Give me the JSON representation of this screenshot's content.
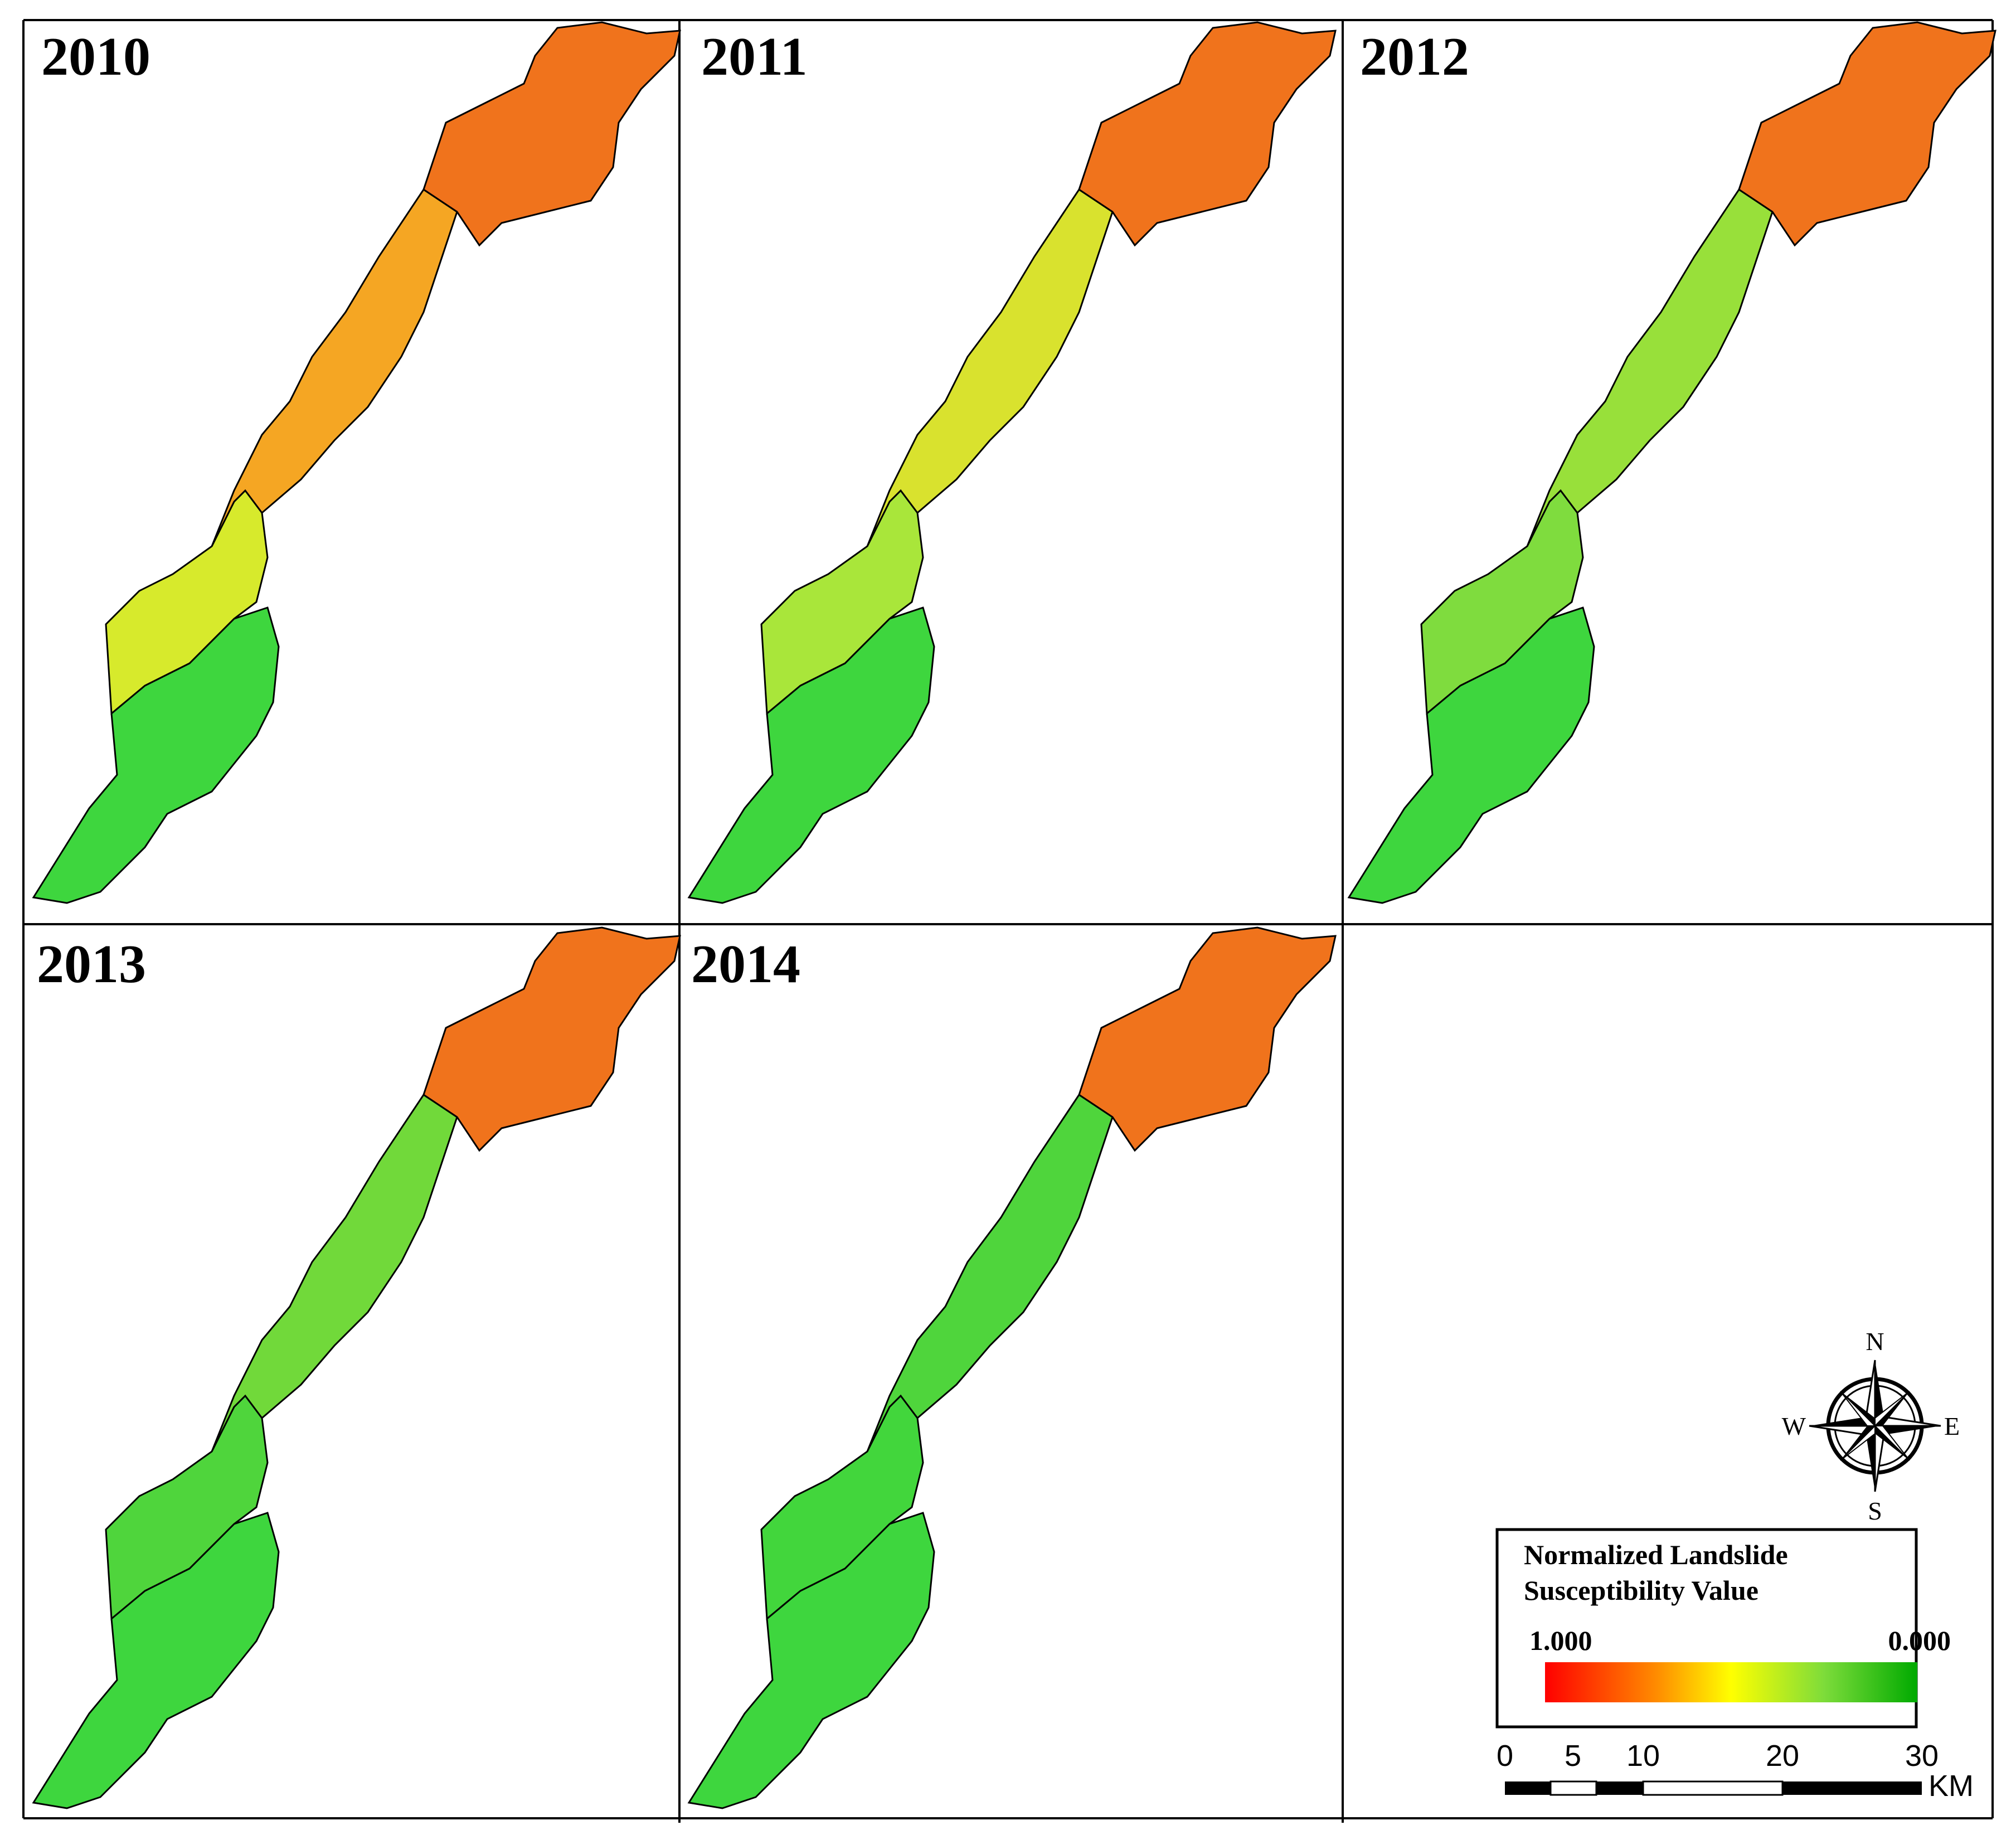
{
  "panels": [
    {
      "label": "2010",
      "fills": [
        "#3ed63e",
        "#d7ea2c",
        "#f5a623",
        "#f0731c"
      ]
    },
    {
      "label": "2011",
      "fills": [
        "#3ed63e",
        "#a9e63a",
        "#d9e22e",
        "#f0731c"
      ]
    },
    {
      "label": "2012",
      "fills": [
        "#3ed63e",
        "#7fdc3e",
        "#98e03a",
        "#f0731c"
      ]
    },
    {
      "label": "2013",
      "fills": [
        "#3ed63e",
        "#4fd53c",
        "#71d93a",
        "#f0731c"
      ]
    },
    {
      "label": "2014",
      "fills": [
        "#3ed63e",
        "#42d63c",
        "#4fd53c",
        "#f0731c"
      ]
    }
  ],
  "legend": {
    "title_line1": "Normalized Landslide",
    "title_line2": "Susceptibility Value",
    "max_label": "1.000",
    "min_label": "0.000",
    "gradient_colors": [
      "#ff0000",
      "#ff8c00",
      "#ffff00",
      "#7ddc3a",
      "#00aa00"
    ]
  },
  "compass": {
    "n": "N",
    "s": "S",
    "e": "E",
    "w": "W"
  },
  "scalebar": {
    "ticks": [
      "0",
      "5",
      "10",
      "20",
      "30"
    ],
    "unit": "KM"
  }
}
